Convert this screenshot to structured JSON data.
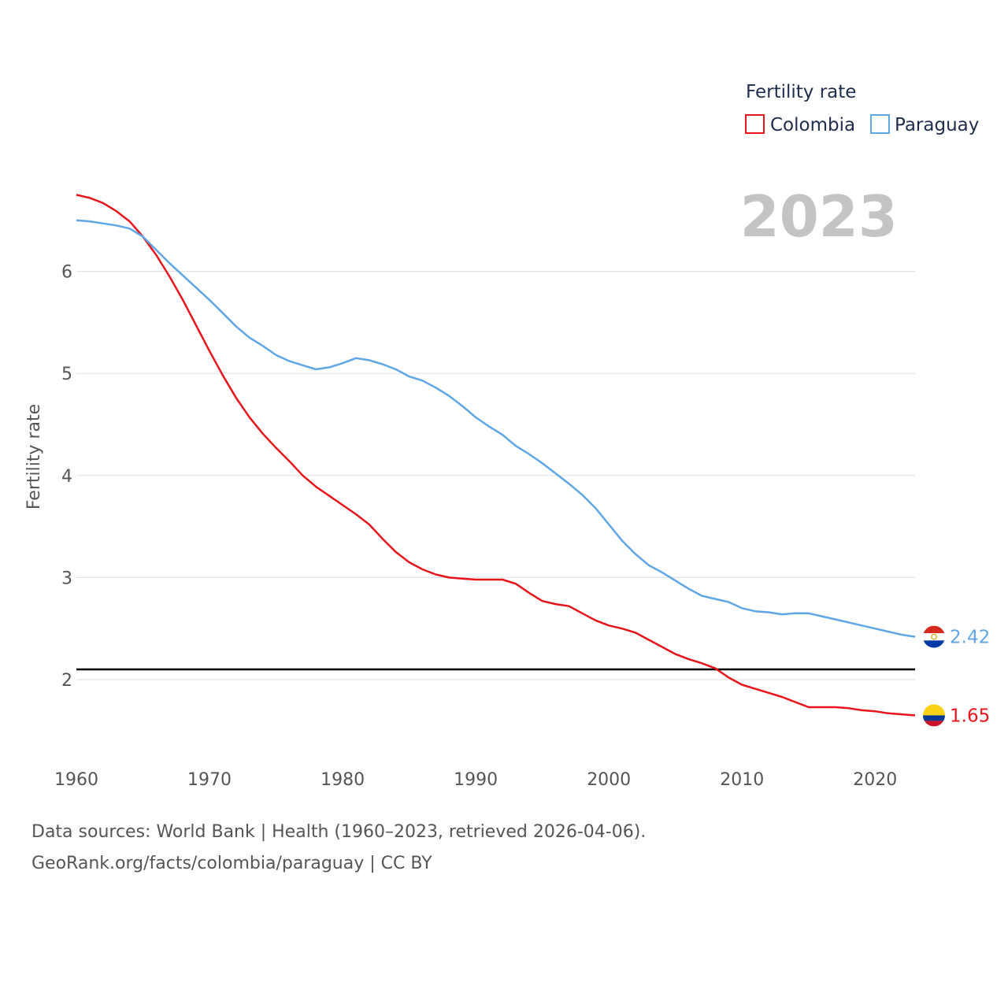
{
  "chart_data": {
    "type": "line",
    "title": "Fertility rate",
    "ylabel": "Fertility rate",
    "xlabel": "",
    "current_year": "2023",
    "xlim": [
      1960,
      2023
    ],
    "ylim": [
      1.35,
      6.85
    ],
    "x_ticks": [
      1960,
      1970,
      1980,
      1990,
      2000,
      2010,
      2020
    ],
    "y_ticks": [
      2,
      3,
      4,
      5,
      6
    ],
    "reference_line": 2.1,
    "x": [
      1960,
      1961,
      1962,
      1963,
      1964,
      1965,
      1966,
      1967,
      1968,
      1969,
      1970,
      1971,
      1972,
      1973,
      1974,
      1975,
      1976,
      1977,
      1978,
      1979,
      1980,
      1981,
      1982,
      1983,
      1984,
      1985,
      1986,
      1987,
      1988,
      1989,
      1990,
      1991,
      1992,
      1993,
      1994,
      1995,
      1996,
      1997,
      1998,
      1999,
      2000,
      2001,
      2002,
      2003,
      2004,
      2005,
      2006,
      2007,
      2008,
      2009,
      2010,
      2011,
      2012,
      2013,
      2014,
      2015,
      2016,
      2017,
      2018,
      2019,
      2020,
      2021,
      2022,
      2023
    ],
    "series": [
      {
        "name": "Colombia",
        "color": "#e8141b",
        "end_label": "1.65",
        "flag": "colombia",
        "values": [
          6.75,
          6.72,
          6.67,
          6.59,
          6.49,
          6.34,
          6.16,
          5.95,
          5.72,
          5.47,
          5.22,
          4.98,
          4.76,
          4.57,
          4.41,
          4.27,
          4.14,
          4.0,
          3.89,
          3.8,
          3.71,
          3.62,
          3.52,
          3.38,
          3.25,
          3.15,
          3.08,
          3.03,
          3.0,
          2.99,
          2.98,
          2.98,
          2.98,
          2.94,
          2.85,
          2.77,
          2.74,
          2.72,
          2.65,
          2.58,
          2.53,
          2.5,
          2.46,
          2.39,
          2.32,
          2.25,
          2.2,
          2.16,
          2.11,
          2.02,
          1.95,
          1.91,
          1.87,
          1.83,
          1.78,
          1.73,
          1.73,
          1.73,
          1.72,
          1.7,
          1.69,
          1.67,
          1.66,
          1.65
        ]
      },
      {
        "name": "Paraguay",
        "color": "#5fa6e6",
        "end_label": "2.42",
        "flag": "paraguay",
        "values": [
          6.5,
          6.49,
          6.47,
          6.45,
          6.42,
          6.34,
          6.21,
          6.08,
          5.96,
          5.84,
          5.72,
          5.59,
          5.46,
          5.35,
          5.27,
          5.18,
          5.12,
          5.08,
          5.04,
          5.06,
          5.1,
          5.15,
          5.13,
          5.09,
          5.04,
          4.97,
          4.93,
          4.86,
          4.78,
          4.68,
          4.57,
          4.48,
          4.4,
          4.29,
          4.21,
          4.12,
          4.02,
          3.92,
          3.81,
          3.68,
          3.52,
          3.36,
          3.23,
          3.12,
          3.05,
          2.97,
          2.89,
          2.82,
          2.79,
          2.76,
          2.7,
          2.67,
          2.66,
          2.64,
          2.65,
          2.65,
          2.62,
          2.59,
          2.56,
          2.53,
          2.5,
          2.47,
          2.44,
          2.42
        ]
      }
    ],
    "legend": {
      "title": "Fertility rate",
      "entries": [
        "Colombia",
        "Paraguay"
      ],
      "position": "top-right"
    },
    "reference_line_color": "#000000",
    "gridlines": true
  },
  "footer": {
    "line1": "Data sources: World Bank | Health (1960–2023, retrieved 2026-04-06).",
    "line2": "GeoRank.org/facts/colombia/paraguay | CC BY"
  }
}
